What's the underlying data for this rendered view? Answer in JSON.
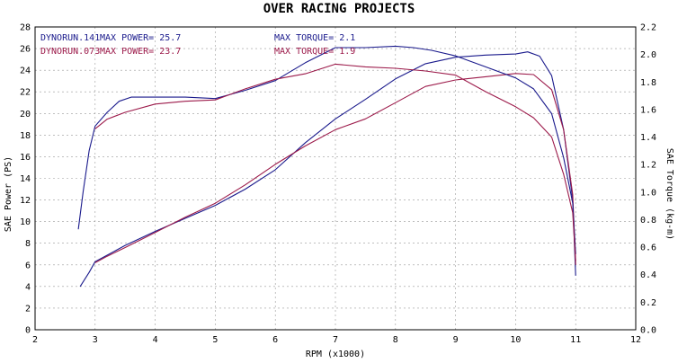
{
  "chart_data": {
    "type": "line",
    "title": "OVER RACING PROJECTS",
    "xlabel": "RPM (x1000)",
    "ylabel_left": "SAE Power (PS)",
    "ylabel_right": "SAE Torque (kg-m)",
    "xlim": [
      2,
      12
    ],
    "ylim_left": [
      0,
      28
    ],
    "ylim_right": [
      0,
      2.2
    ],
    "x_ticks": [
      "2",
      "3",
      "4",
      "5",
      "6",
      "7",
      "8",
      "9",
      "10",
      "11",
      "12"
    ],
    "y_ticks_left": [
      "0",
      "2",
      "4",
      "6",
      "8",
      "10",
      "12",
      "14",
      "16",
      "18",
      "20",
      "22",
      "24",
      "26",
      "28"
    ],
    "y_ticks_right": [
      "0.0",
      "0.2",
      "0.4",
      "0.6",
      "0.8",
      "1.0",
      "1.2",
      "1.4",
      "1.6",
      "1.8",
      "2.0",
      "2.2"
    ],
    "grid": true,
    "legend": [
      {
        "run": "DYNORUN.141",
        "power": "MAX POWER= 25.7",
        "torque": "MAX TORQUE= 2.1",
        "color": "#1a1a8c"
      },
      {
        "run": "DYNORUN.073",
        "power": "MAX POWER= 23.7",
        "torque": "MAX TORQUE= 1.9",
        "color": "#9c1a4a"
      }
    ],
    "series": [
      {
        "axis": "left",
        "color": "#1a1a8c",
        "x": [
          2.75,
          2.9,
          3.0,
          3.2,
          3.5,
          4.0,
          4.5,
          5.0,
          5.5,
          6.0,
          6.5,
          7.0,
          7.5,
          8.0,
          8.5,
          9.0,
          9.5,
          10.0,
          10.2,
          10.4,
          10.6,
          10.8,
          10.95,
          11.0
        ],
        "y": [
          4.0,
          5.3,
          6.3,
          6.9,
          7.8,
          9.1,
          10.3,
          11.5,
          13.0,
          14.8,
          17.3,
          19.5,
          21.3,
          23.2,
          24.6,
          25.2,
          25.4,
          25.5,
          25.7,
          25.3,
          23.5,
          18.5,
          12.0,
          5.0
        ]
      },
      {
        "axis": "left",
        "color": "#9c1a4a",
        "x": [
          3.0,
          3.2,
          3.5,
          4.0,
          4.5,
          5.0,
          5.5,
          6.0,
          6.5,
          7.0,
          7.5,
          8.0,
          8.5,
          9.0,
          9.5,
          10.0,
          10.3,
          10.6,
          10.8,
          10.95,
          11.0
        ],
        "y": [
          6.2,
          6.8,
          7.6,
          9.0,
          10.4,
          11.7,
          13.4,
          15.3,
          17.0,
          18.5,
          19.5,
          21.0,
          22.5,
          23.1,
          23.4,
          23.7,
          23.6,
          22.2,
          18.5,
          12.5,
          6.0
        ]
      },
      {
        "axis": "right",
        "color": "#1a1a8c",
        "x": [
          2.72,
          2.8,
          2.9,
          3.0,
          3.2,
          3.4,
          3.6,
          4.0,
          4.5,
          5.0,
          5.5,
          6.0,
          6.5,
          7.0,
          7.5,
          8.0,
          8.3,
          8.6,
          9.0,
          9.5,
          10.0,
          10.3,
          10.6,
          10.8,
          10.95,
          11.0
        ],
        "y": [
          0.73,
          1.0,
          1.3,
          1.48,
          1.58,
          1.66,
          1.69,
          1.69,
          1.69,
          1.68,
          1.74,
          1.81,
          1.94,
          2.05,
          2.05,
          2.06,
          2.05,
          2.03,
          1.99,
          1.91,
          1.83,
          1.75,
          1.57,
          1.25,
          0.92,
          0.55
        ]
      },
      {
        "axis": "right",
        "color": "#9c1a4a",
        "x": [
          3.0,
          3.2,
          3.5,
          4.0,
          4.5,
          5.0,
          5.5,
          6.0,
          6.5,
          7.0,
          7.5,
          8.0,
          8.5,
          9.0,
          9.5,
          10.0,
          10.3,
          10.6,
          10.8,
          10.95,
          11.0
        ],
        "y": [
          1.46,
          1.53,
          1.58,
          1.64,
          1.66,
          1.67,
          1.75,
          1.82,
          1.86,
          1.93,
          1.91,
          1.9,
          1.88,
          1.85,
          1.73,
          1.62,
          1.54,
          1.4,
          1.13,
          0.85,
          0.5
        ]
      }
    ]
  }
}
